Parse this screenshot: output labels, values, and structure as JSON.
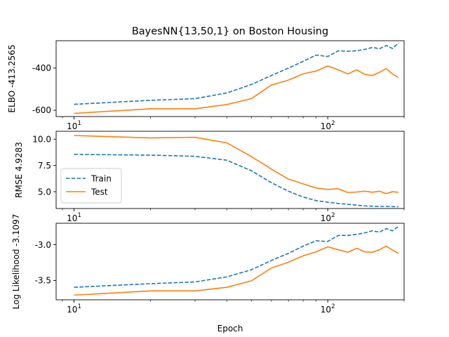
{
  "figure": {
    "title": "BayesNN{13,50,1} on Boston Housing",
    "xlabel": "Epoch"
  },
  "colors": {
    "train": "#1f77b4",
    "test": "#ff7f0e"
  },
  "legend": {
    "placement": "lower-left of middle panel",
    "entries": [
      "Train",
      "Test"
    ]
  },
  "chart_data": [
    {
      "type": "line",
      "title": "BayesNN{13,50,1} on Boston Housing",
      "ylabel": "ELBO -413.2565",
      "xscale": "log",
      "xlim": [
        8.5,
        200
      ],
      "ylim": [
        -630,
        -270
      ],
      "xticks": [
        {
          "base": "10",
          "exp": "1",
          "value": 10
        },
        {
          "base": "10",
          "exp": "2",
          "value": 100
        }
      ],
      "yticks": [
        {
          "label": "-400",
          "value": -400
        },
        {
          "label": "-600",
          "value": -600
        }
      ],
      "series": [
        {
          "name": "Train",
          "style": "dashed",
          "x": [
            10,
            20,
            30,
            40,
            50,
            60,
            70,
            80,
            90,
            100,
            110,
            120,
            130,
            140,
            150,
            160,
            170,
            180,
            190
          ],
          "y": [
            -572,
            -553,
            -545,
            -518,
            -478,
            -435,
            -400,
            -368,
            -338,
            -345,
            -318,
            -320,
            -318,
            -311,
            -302,
            -308,
            -293,
            -307,
            -280
          ]
        },
        {
          "name": "Test",
          "style": "solid",
          "x": [
            10,
            20,
            30,
            40,
            50,
            60,
            70,
            80,
            90,
            100,
            110,
            120,
            130,
            140,
            150,
            160,
            170,
            180,
            190
          ],
          "y": [
            -615,
            -593,
            -593,
            -573,
            -545,
            -480,
            -457,
            -427,
            -414,
            -390,
            -408,
            -428,
            -408,
            -430,
            -435,
            -420,
            -402,
            -428,
            -445
          ]
        }
      ]
    },
    {
      "type": "line",
      "ylabel": "RMSE 4.9283",
      "xscale": "log",
      "xlim": [
        8.5,
        200
      ],
      "ylim": [
        3.4,
        10.75
      ],
      "xticks": [
        {
          "base": "10",
          "exp": "1",
          "value": 10
        },
        {
          "base": "10",
          "exp": "2",
          "value": 100
        }
      ],
      "yticks": [
        {
          "label": "10.0",
          "value": 10.0
        },
        {
          "label": "7.5",
          "value": 7.5
        },
        {
          "label": "5.0",
          "value": 5.0
        }
      ],
      "series": [
        {
          "name": "Train",
          "style": "dashed",
          "x": [
            10,
            20,
            30,
            40,
            50,
            60,
            70,
            80,
            90,
            100,
            110,
            120,
            130,
            140,
            150,
            160,
            170,
            180,
            190
          ],
          "y": [
            8.55,
            8.48,
            8.37,
            8.0,
            7.0,
            5.85,
            5.05,
            4.5,
            4.15,
            4.0,
            3.88,
            3.8,
            3.72,
            3.65,
            3.62,
            3.6,
            3.6,
            3.58,
            3.57
          ]
        },
        {
          "name": "Test",
          "style": "solid",
          "x": [
            10,
            20,
            30,
            40,
            50,
            60,
            70,
            80,
            90,
            100,
            110,
            120,
            130,
            140,
            150,
            160,
            170,
            180,
            190
          ],
          "y": [
            10.35,
            10.12,
            10.18,
            9.65,
            8.35,
            7.15,
            6.2,
            5.75,
            5.35,
            5.22,
            5.28,
            4.92,
            4.97,
            5.05,
            4.95,
            5.05,
            4.82,
            5.0,
            4.95
          ]
        }
      ]
    },
    {
      "type": "line",
      "ylabel": "Log Likelihood -3.1097",
      "xscale": "log",
      "xlim": [
        8.5,
        200
      ],
      "ylim": [
        -3.77,
        -2.7
      ],
      "xticks": [
        {
          "base": "10",
          "exp": "1",
          "value": 10
        },
        {
          "base": "10",
          "exp": "2",
          "value": 100
        }
      ],
      "yticks": [
        {
          "label": "-3.0",
          "value": -3.0
        },
        {
          "label": "-3.5",
          "value": -3.5
        }
      ],
      "series": [
        {
          "name": "Train",
          "style": "dashed",
          "x": [
            10,
            20,
            30,
            40,
            50,
            60,
            70,
            80,
            90,
            100,
            110,
            120,
            130,
            140,
            150,
            160,
            170,
            180,
            190
          ],
          "y": [
            -3.595,
            -3.545,
            -3.52,
            -3.45,
            -3.35,
            -3.22,
            -3.12,
            -3.02,
            -2.945,
            -2.955,
            -2.87,
            -2.87,
            -2.855,
            -2.835,
            -2.805,
            -2.825,
            -2.775,
            -2.805,
            -2.745
          ]
        },
        {
          "name": "Test",
          "style": "solid",
          "x": [
            10,
            20,
            30,
            40,
            50,
            60,
            70,
            80,
            90,
            100,
            110,
            120,
            130,
            140,
            150,
            160,
            170,
            180,
            190
          ],
          "y": [
            -3.705,
            -3.645,
            -3.645,
            -3.595,
            -3.505,
            -3.325,
            -3.245,
            -3.155,
            -3.1,
            -3.03,
            -3.07,
            -3.105,
            -3.05,
            -3.1,
            -3.105,
            -3.07,
            -3.02,
            -3.075,
            -3.12
          ]
        }
      ]
    }
  ]
}
